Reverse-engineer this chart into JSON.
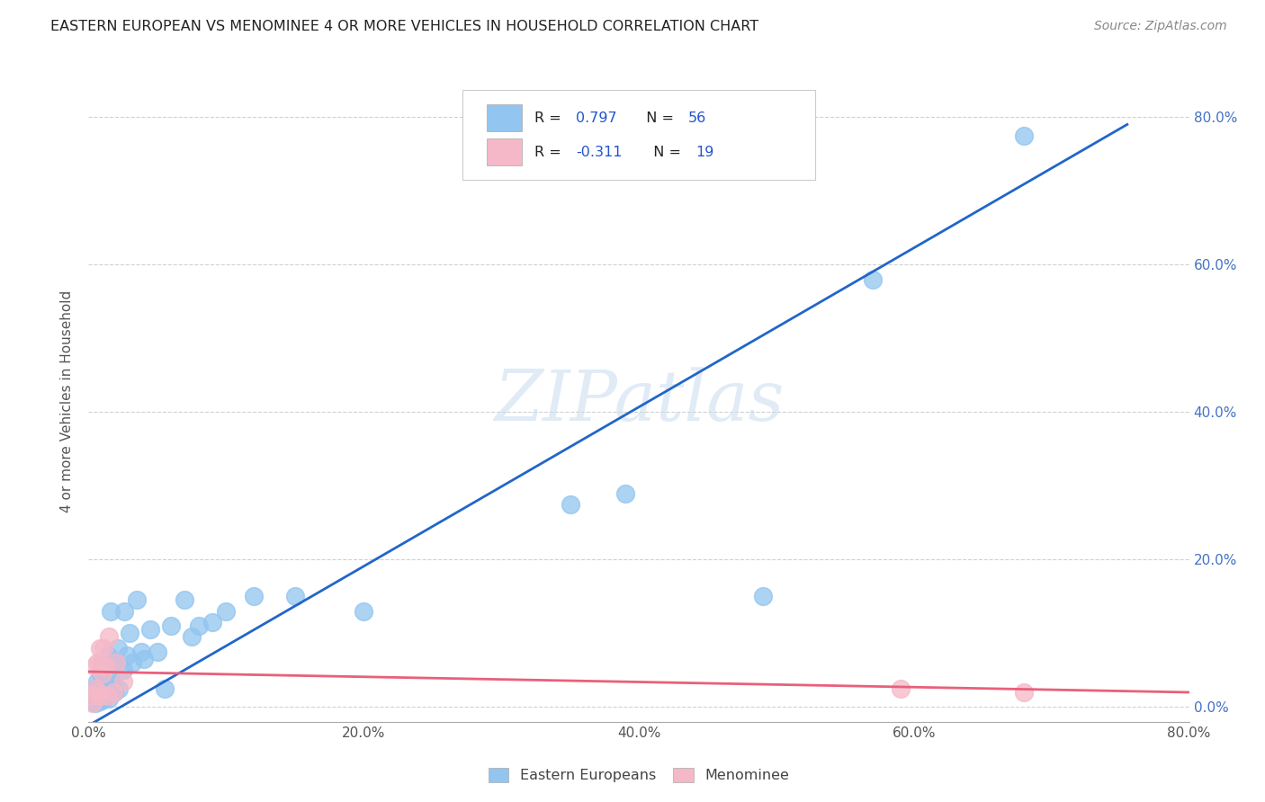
{
  "title": "EASTERN EUROPEAN VS MENOMINEE 4 OR MORE VEHICLES IN HOUSEHOLD CORRELATION CHART",
  "source": "Source: ZipAtlas.com",
  "ylabel": "4 or more Vehicles in Household",
  "xlim": [
    0.0,
    0.8
  ],
  "ylim": [
    -0.02,
    0.85
  ],
  "xtick_labels": [
    "0.0%",
    "",
    "20.0%",
    "",
    "40.0%",
    "",
    "60.0%",
    "",
    "80.0%"
  ],
  "xtick_vals": [
    0.0,
    0.1,
    0.2,
    0.3,
    0.4,
    0.5,
    0.6,
    0.7,
    0.8
  ],
  "ytick_vals": [
    0.0,
    0.2,
    0.4,
    0.6,
    0.8
  ],
  "ytick_labels_right": [
    "0.0%",
    "20.0%",
    "40.0%",
    "60.0%",
    "80.0%"
  ],
  "legend_labels": [
    "Eastern Europeans",
    "Menominee"
  ],
  "legend_r1": "R = 0.797",
  "legend_n1": "N = 56",
  "legend_r2": "R = -0.311",
  "legend_n2": "N = 19",
  "blue_color": "#92C5F0",
  "pink_color": "#F5B8C8",
  "blue_line_color": "#2166C8",
  "pink_line_color": "#E8607A",
  "watermark": "ZIPatlas",
  "blue_scatter_x": [
    0.002,
    0.003,
    0.004,
    0.005,
    0.005,
    0.006,
    0.006,
    0.007,
    0.007,
    0.008,
    0.008,
    0.009,
    0.009,
    0.01,
    0.01,
    0.01,
    0.011,
    0.012,
    0.012,
    0.013,
    0.014,
    0.015,
    0.015,
    0.016,
    0.016,
    0.017,
    0.018,
    0.019,
    0.02,
    0.021,
    0.022,
    0.025,
    0.026,
    0.028,
    0.03,
    0.032,
    0.035,
    0.038,
    0.04,
    0.045,
    0.05,
    0.055,
    0.06,
    0.07,
    0.075,
    0.08,
    0.09,
    0.1,
    0.12,
    0.15,
    0.2,
    0.35,
    0.39,
    0.49,
    0.57,
    0.68
  ],
  "blue_scatter_y": [
    0.015,
    0.008,
    0.012,
    0.025,
    0.005,
    0.018,
    0.035,
    0.01,
    0.022,
    0.008,
    0.03,
    0.045,
    0.015,
    0.06,
    0.02,
    0.04,
    0.01,
    0.025,
    0.055,
    0.015,
    0.07,
    0.012,
    0.035,
    0.045,
    0.13,
    0.06,
    0.03,
    0.02,
    0.06,
    0.08,
    0.025,
    0.05,
    0.13,
    0.07,
    0.1,
    0.06,
    0.145,
    0.075,
    0.065,
    0.105,
    0.075,
    0.025,
    0.11,
    0.145,
    0.095,
    0.11,
    0.115,
    0.13,
    0.15,
    0.15,
    0.13,
    0.275,
    0.29,
    0.15,
    0.58,
    0.775
  ],
  "pink_scatter_x": [
    0.002,
    0.003,
    0.004,
    0.005,
    0.006,
    0.007,
    0.008,
    0.008,
    0.009,
    0.01,
    0.011,
    0.012,
    0.014,
    0.015,
    0.018,
    0.02,
    0.025,
    0.59,
    0.68
  ],
  "pink_scatter_y": [
    0.015,
    0.005,
    0.055,
    0.025,
    0.06,
    0.02,
    0.015,
    0.08,
    0.06,
    0.045,
    0.08,
    0.055,
    0.015,
    0.095,
    0.02,
    0.06,
    0.035,
    0.025,
    0.02
  ],
  "blue_line_x": [
    0.0,
    0.755
  ],
  "blue_line_y": [
    -0.025,
    0.79
  ],
  "pink_line_x": [
    0.0,
    0.8
  ],
  "pink_line_y": [
    0.048,
    0.02
  ]
}
